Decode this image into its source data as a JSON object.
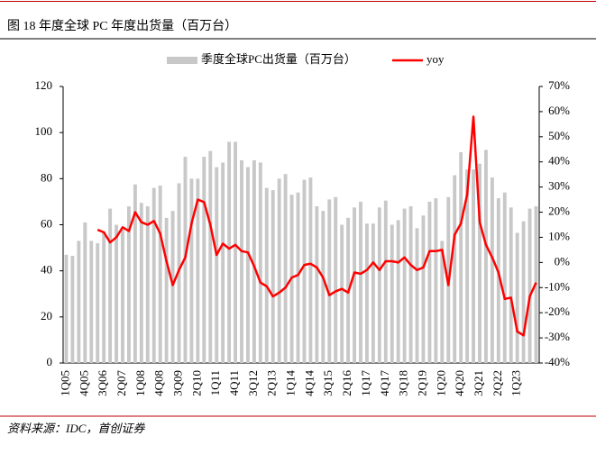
{
  "chart_data": {
    "type": "bar-line",
    "title": "图 18 年度全球 PC 年度出货量（百万台）",
    "source": "资料来源：IDC，首创证券",
    "categories": [
      "1Q05",
      null,
      null,
      "4Q05",
      null,
      null,
      "3Q06",
      null,
      null,
      "2Q07",
      null,
      null,
      "1Q08",
      null,
      null,
      "4Q08",
      null,
      null,
      "3Q09",
      null,
      null,
      "2Q10",
      null,
      null,
      "1Q11",
      null,
      null,
      "4Q11",
      null,
      null,
      "3Q12",
      null,
      null,
      "2Q13",
      null,
      null,
      "1Q14",
      null,
      null,
      "4Q14",
      null,
      null,
      "3Q15",
      null,
      null,
      "2Q16",
      null,
      null,
      "1Q17",
      null,
      null,
      "4Q17",
      null,
      null,
      "3Q18",
      null,
      null,
      "2Q19",
      null,
      null,
      "1Q20",
      null,
      null,
      "4Q20",
      null,
      null,
      "3Q21",
      null,
      null,
      "2Q22",
      null,
      null,
      "1Q23",
      null,
      null,
      null
    ],
    "series": [
      {
        "name": "季度全球PC出货量（百万台）",
        "type": "bar",
        "color": "#c8c8c8",
        "values": [
          47,
          46.5,
          53,
          61,
          53,
          52,
          57,
          67,
          60,
          58,
          68,
          77.5,
          69.5,
          68,
          76,
          77,
          63,
          66,
          78,
          89.5,
          80,
          80,
          89.5,
          92,
          85,
          87,
          96,
          96,
          88,
          85,
          88,
          87,
          76,
          75,
          80,
          82,
          73,
          74,
          79.5,
          80.5,
          68,
          66,
          71,
          72,
          60,
          63,
          67.5,
          70,
          60.5,
          60.5,
          67.5,
          70.5,
          60,
          62,
          67,
          68,
          58.5,
          64,
          70,
          71.5,
          53,
          72,
          81.5,
          91.5,
          84,
          84,
          86.5,
          92.5,
          80.5,
          71.5,
          74,
          67.5,
          56.5,
          61.5,
          67,
          68
        ]
      },
      {
        "name": "yoy",
        "type": "line",
        "axis": "y2",
        "color": "#ff0000",
        "values": [
          null,
          null,
          null,
          null,
          null,
          13,
          12,
          8,
          10,
          14,
          12.5,
          20,
          16,
          15,
          16.5,
          11.5,
          0.5,
          -9,
          -3,
          2,
          15.5,
          25,
          24,
          15,
          3,
          7.5,
          5.5,
          7,
          4.5,
          4,
          -1.5,
          -8,
          -9.5,
          -13.5,
          -12,
          -10,
          -6,
          -5,
          -1,
          -0.5,
          -2,
          -6,
          -13,
          -11.5,
          -10.5,
          -12,
          -4,
          -4.5,
          -3,
          0,
          -3,
          0.5,
          0.5,
          0,
          2,
          -1,
          -3,
          -2,
          4.5,
          4.5,
          5,
          -9,
          11,
          15.5,
          27,
          58,
          16,
          7,
          2,
          -4,
          -14.5,
          -14,
          -27.5,
          -29,
          -13.5,
          -8
        ]
      }
    ],
    "ylim": [
      0,
      120
    ],
    "yticks": [
      0,
      20,
      40,
      60,
      80,
      100,
      120
    ],
    "y2lim": [
      -40,
      70
    ],
    "y2ticks": [
      {
        "value": -40,
        "label": "-40%"
      },
      {
        "value": -30,
        "label": "-30%"
      },
      {
        "value": -20,
        "label": "-20%"
      },
      {
        "value": -10,
        "label": "-10%"
      },
      {
        "value": 0,
        "label": "0%"
      },
      {
        "value": 10,
        "label": "10%"
      },
      {
        "value": 20,
        "label": "20%"
      },
      {
        "value": 30,
        "label": "30%"
      },
      {
        "value": 40,
        "label": "40%"
      },
      {
        "value": 50,
        "label": "50%"
      },
      {
        "value": 60,
        "label": "60%"
      },
      {
        "value": 70,
        "label": "70%"
      }
    ],
    "legend": "top"
  }
}
